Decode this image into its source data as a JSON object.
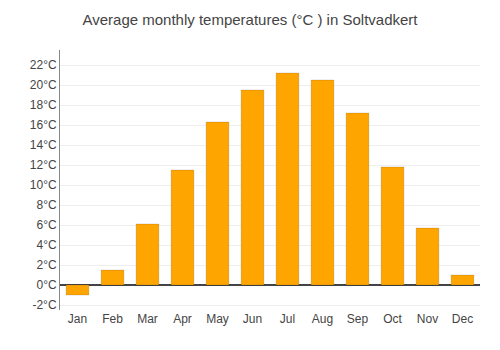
{
  "chart_data": {
    "type": "bar",
    "title": "Average monthly temperatures (°C ) in Soltvadkert",
    "categories": [
      "Jan",
      "Feb",
      "Mar",
      "Apr",
      "May",
      "Jun",
      "Jul",
      "Aug",
      "Sep",
      "Oct",
      "Nov",
      "Dec"
    ],
    "values": [
      -1.0,
      1.5,
      6.1,
      11.5,
      16.3,
      19.5,
      21.2,
      20.5,
      17.2,
      11.8,
      5.7,
      1.0
    ],
    "color": "#FFA500",
    "ylim": [
      -2.5,
      23.5
    ],
    "yticks": [
      {
        "value": -2,
        "label": "-2°C"
      },
      {
        "value": 0,
        "label": "0°C"
      },
      {
        "value": 2,
        "label": "2°C"
      },
      {
        "value": 4,
        "label": "4°C"
      },
      {
        "value": 6,
        "label": "6°C"
      },
      {
        "value": 8,
        "label": "8°C"
      },
      {
        "value": 10,
        "label": "10°C"
      },
      {
        "value": 12,
        "label": "12°C"
      },
      {
        "value": 14,
        "label": "14°C"
      },
      {
        "value": 16,
        "label": "16°C"
      },
      {
        "value": 18,
        "label": "18°C"
      },
      {
        "value": 20,
        "label": "20°C"
      },
      {
        "value": 22,
        "label": "22°C"
      }
    ],
    "grid": true
  }
}
